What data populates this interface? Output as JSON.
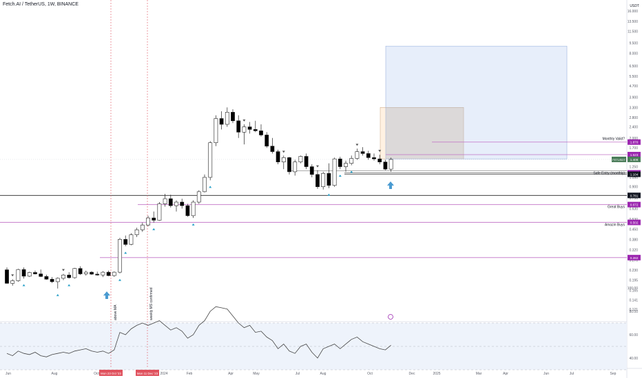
{
  "header": {
    "symbol_title": "Fetch.AI / TetherUS, 1W, BINANCE",
    "currency": "USDT"
  },
  "chart_data": {
    "type": "candlestick",
    "price_axis": {
      "scale": "log",
      "ticks": [
        "16.000",
        "13.500",
        "11.500",
        "9.500",
        "8.000",
        "6.500",
        "5.500",
        "4.700",
        "3.900",
        "3.300",
        "2.800",
        "2.400",
        "2.000",
        "1.700",
        "1.450",
        "1.250",
        "1.050",
        "0.900",
        "0.750",
        "0.630",
        "0.530",
        "0.450",
        "0.380",
        "0.320",
        "0.270",
        "0.230",
        "0.195",
        "0.165",
        "0.141",
        "0.121"
      ]
    },
    "time_axis": {
      "labels": [
        "Jun",
        "Aug",
        "Oct",
        "2024",
        "Feb",
        "Apr",
        "May",
        "Jul",
        "Aug",
        "Oct",
        "Dec",
        "2025",
        "Mar",
        "Apr",
        "Jun",
        "Jul",
        "Sep"
      ],
      "highlights": [
        "Mon 23 Oct '23",
        "Mon 11 Dec '23"
      ]
    },
    "price_badges": [
      {
        "value": "1.870",
        "color": "#9c27b0"
      },
      {
        "value": "1.523",
        "color": "#9c27b0"
      },
      {
        "value": "1.408",
        "color": "#4a7c59",
        "label": "FETUSDT"
      },
      {
        "value": "1.130",
        "color": "#9c27b0"
      },
      {
        "value": "1.104",
        "color": "#131722"
      },
      {
        "value": "0.781",
        "color": "#131722"
      },
      {
        "value": "0.672",
        "color": "#9c27b0"
      },
      {
        "value": "0.502",
        "color": "#9c27b0"
      },
      {
        "value": "0.282",
        "color": "#9c27b0"
      }
    ],
    "annotations": [
      {
        "text": "Monthly Valid?"
      },
      {
        "text": "Safe Entry (monthly)"
      },
      {
        "text": "Great Buys"
      },
      {
        "text": "Amazin Buys"
      },
      {
        "text": "above MA"
      },
      {
        "text": "weekly MS confirmed"
      }
    ],
    "oscillator": {
      "ticks": [
        "100.00",
        "80.00",
        "60.00",
        "40.00"
      ],
      "levels": [
        70,
        50,
        30
      ]
    },
    "candles": [
      [
        0.231,
        0.24,
        0.184,
        0.185
      ],
      [
        0.185,
        0.198,
        0.178,
        0.193
      ],
      [
        0.193,
        0.235,
        0.19,
        0.232
      ],
      [
        0.232,
        0.24,
        0.2,
        0.208
      ],
      [
        0.208,
        0.224,
        0.205,
        0.221
      ],
      [
        0.221,
        0.228,
        0.214,
        0.216
      ],
      [
        0.216,
        0.232,
        0.205,
        0.207
      ],
      [
        0.207,
        0.213,
        0.196,
        0.198
      ],
      [
        0.198,
        0.205,
        0.186,
        0.19
      ],
      [
        0.19,
        0.204,
        0.17,
        0.201
      ],
      [
        0.201,
        0.216,
        0.195,
        0.212
      ],
      [
        0.212,
        0.222,
        0.2,
        0.203
      ],
      [
        0.203,
        0.238,
        0.2,
        0.236
      ],
      [
        0.236,
        0.245,
        0.212,
        0.216
      ],
      [
        0.216,
        0.228,
        0.21,
        0.222
      ],
      [
        0.222,
        0.226,
        0.212,
        0.215
      ],
      [
        0.215,
        0.224,
        0.21,
        0.212
      ],
      [
        0.212,
        0.226,
        0.205,
        0.222
      ],
      [
        0.222,
        0.228,
        0.208,
        0.21
      ],
      [
        0.21,
        0.225,
        0.206,
        0.222
      ],
      [
        0.222,
        0.39,
        0.218,
        0.38
      ],
      [
        0.38,
        0.405,
        0.34,
        0.35
      ],
      [
        0.35,
        0.42,
        0.345,
        0.41
      ],
      [
        0.41,
        0.46,
        0.395,
        0.445
      ],
      [
        0.445,
        0.5,
        0.43,
        0.48
      ],
      [
        0.48,
        0.56,
        0.47,
        0.54
      ],
      [
        0.54,
        0.6,
        0.5,
        0.52
      ],
      [
        0.52,
        0.7,
        0.515,
        0.68
      ],
      [
        0.68,
        0.8,
        0.65,
        0.74
      ],
      [
        0.74,
        0.79,
        0.64,
        0.66
      ],
      [
        0.66,
        0.72,
        0.6,
        0.7
      ],
      [
        0.7,
        0.74,
        0.63,
        0.66
      ],
      [
        0.66,
        0.68,
        0.55,
        0.56
      ],
      [
        0.56,
        0.72,
        0.54,
        0.7
      ],
      [
        0.7,
        0.85,
        0.68,
        0.83
      ],
      [
        0.83,
        1.1,
        0.82,
        1.05
      ],
      [
        1.05,
        1.9,
        1.0,
        1.85
      ],
      [
        1.85,
        2.9,
        1.75,
        2.75
      ],
      [
        2.75,
        3.1,
        2.3,
        2.5
      ],
      [
        2.5,
        3.3,
        2.4,
        3.05
      ],
      [
        3.05,
        3.2,
        2.55,
        2.65
      ],
      [
        2.65,
        2.9,
        2.0,
        2.2
      ],
      [
        2.2,
        2.5,
        1.8,
        2.4
      ],
      [
        2.4,
        2.6,
        2.15,
        2.3
      ],
      [
        2.3,
        2.65,
        2.2,
        2.25
      ],
      [
        2.25,
        2.5,
        2.05,
        2.1
      ],
      [
        2.1,
        2.2,
        1.7,
        1.75
      ],
      [
        1.75,
        2.0,
        1.55,
        1.6
      ],
      [
        1.6,
        1.65,
        1.3,
        1.35
      ],
      [
        1.35,
        1.5,
        1.2,
        1.45
      ],
      [
        1.45,
        1.47,
        1.1,
        1.15
      ],
      [
        1.15,
        1.4,
        1.08,
        1.35
      ],
      [
        1.35,
        1.5,
        1.32,
        1.48
      ],
      [
        1.48,
        1.55,
        1.2,
        1.25
      ],
      [
        1.25,
        1.3,
        1.05,
        1.1
      ],
      [
        1.1,
        1.18,
        0.87,
        0.9
      ],
      [
        0.9,
        1.15,
        0.86,
        1.12
      ],
      [
        1.12,
        1.32,
        0.88,
        0.92
      ],
      [
        0.92,
        1.45,
        0.9,
        1.42
      ],
      [
        1.42,
        1.47,
        1.2,
        1.25
      ],
      [
        1.25,
        1.38,
        1.15,
        1.32
      ],
      [
        1.32,
        1.5,
        1.28,
        1.43
      ],
      [
        1.43,
        1.68,
        1.4,
        1.6
      ],
      [
        1.6,
        1.72,
        1.5,
        1.55
      ],
      [
        1.55,
        1.62,
        1.4,
        1.45
      ],
      [
        1.45,
        1.55,
        1.38,
        1.42
      ],
      [
        1.42,
        1.52,
        1.3,
        1.35
      ],
      [
        1.35,
        1.4,
        1.18,
        1.2
      ],
      [
        1.2,
        1.45,
        1.15,
        1.408
      ]
    ],
    "rsi": [
      44,
      42,
      46,
      44,
      43,
      45,
      42,
      41,
      43,
      44,
      45,
      44,
      46,
      47,
      48,
      46,
      45,
      46,
      44,
      47,
      62,
      60,
      65,
      68,
      70,
      68,
      70,
      72,
      68,
      64,
      66,
      63,
      57,
      60,
      68,
      72,
      80,
      84,
      83,
      82,
      76,
      70,
      66,
      68,
      62,
      63,
      58,
      55,
      48,
      52,
      46,
      44,
      50,
      52,
      45,
      40,
      48,
      50,
      52,
      48,
      52,
      56,
      58,
      54,
      52,
      50,
      48,
      47,
      51
    ]
  }
}
